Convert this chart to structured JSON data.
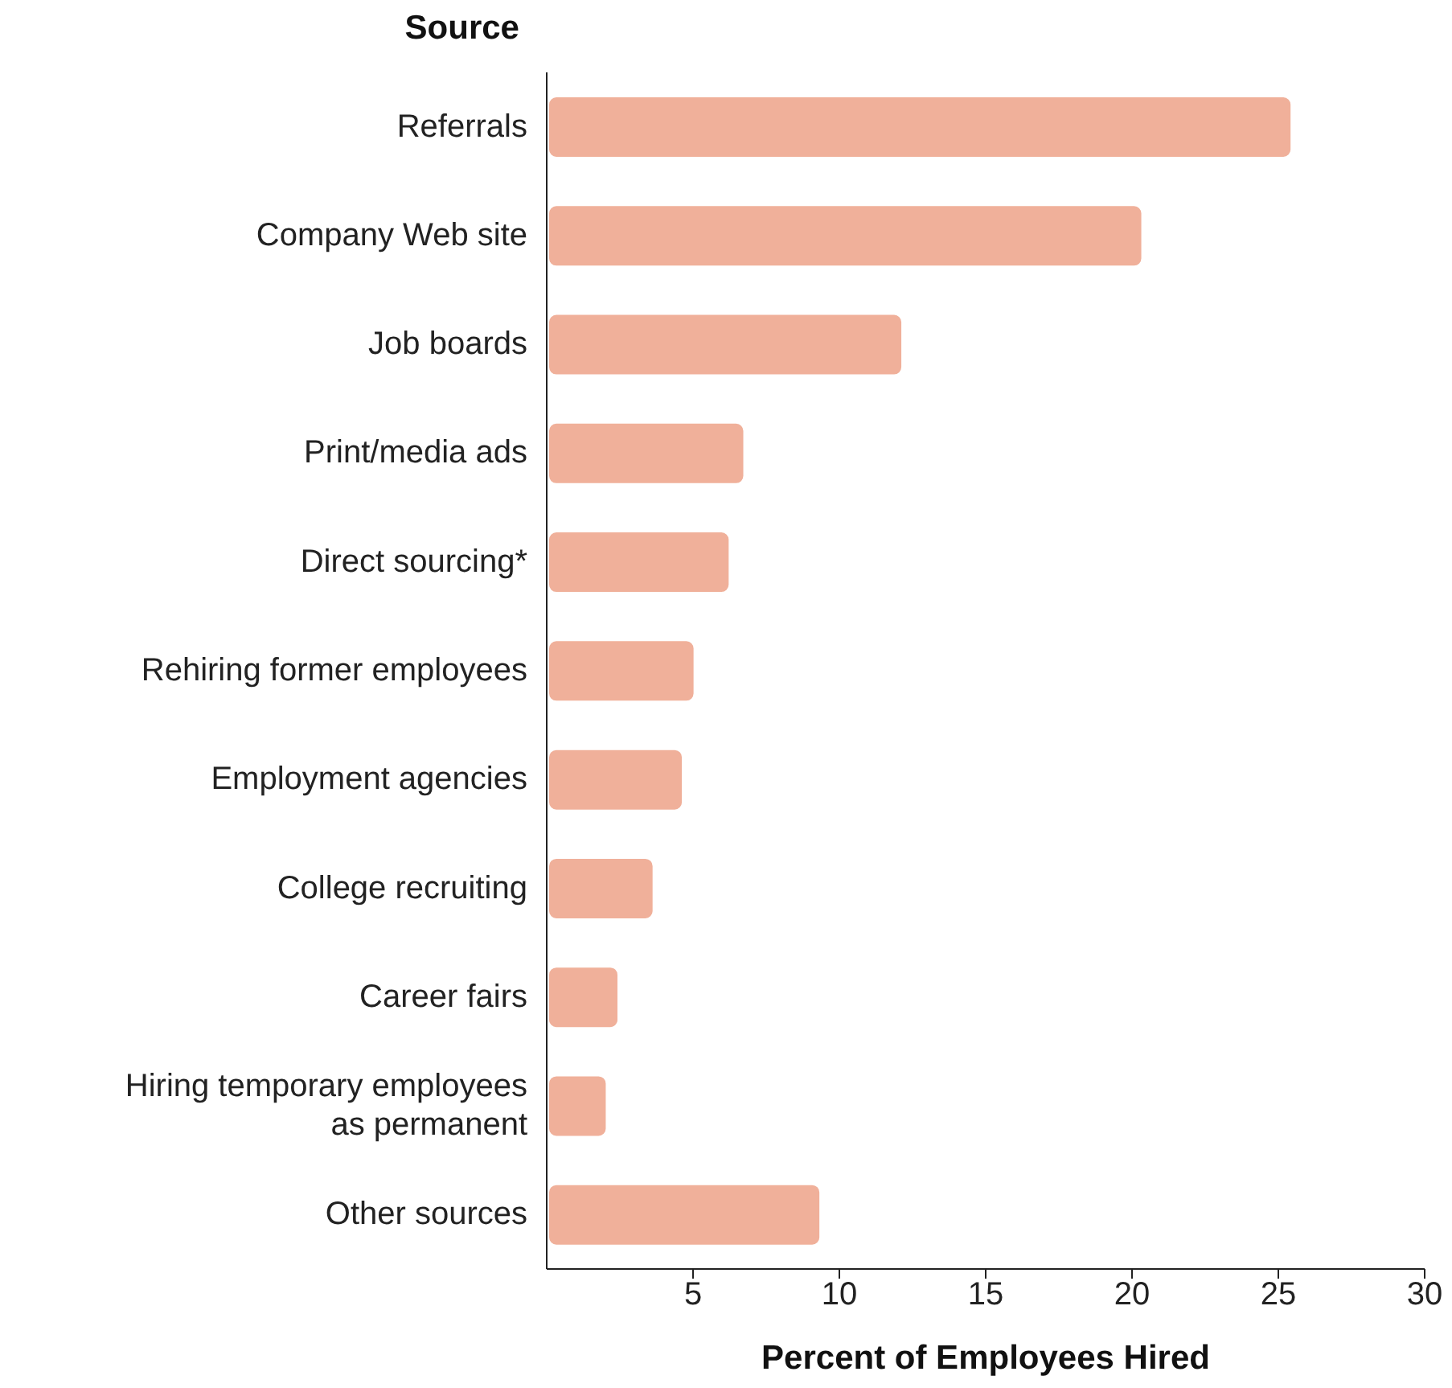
{
  "chart_data": {
    "type": "bar",
    "orientation": "horizontal",
    "ylabel": "Source",
    "xlabel": "Percent of Employees Hired",
    "categories": [
      "Referrals",
      "Company Web site",
      "Job boards",
      "Print/media ads",
      "Direct sourcing*",
      "Rehiring former employees",
      "Employment agencies",
      "College recruiting",
      "Career fairs",
      "Hiring temporary employees as permanent",
      "Other sources"
    ],
    "values": [
      25.5,
      20.4,
      12.2,
      6.8,
      6.3,
      5.1,
      4.7,
      3.7,
      2.5,
      2.1,
      9.4
    ],
    "color": "#f0b09a",
    "xlim": [
      0,
      30
    ],
    "xticks": [
      5,
      10,
      15,
      20,
      25,
      30
    ],
    "grid": false,
    "legend": false
  }
}
